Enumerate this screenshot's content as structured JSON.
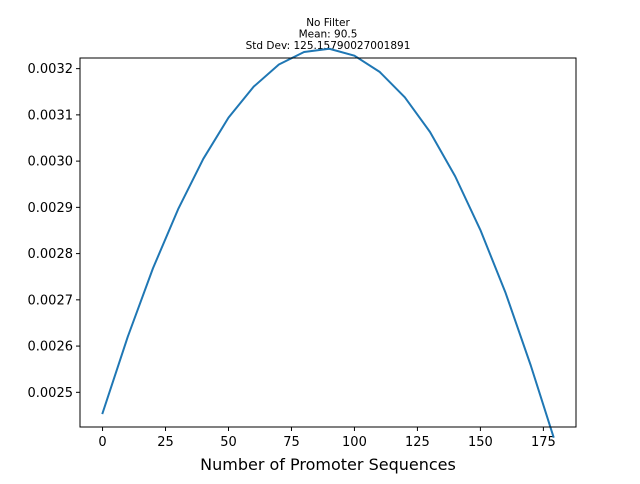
{
  "chart_data": {
    "type": "line",
    "title": [
      "No Filter",
      "Mean: 90.5",
      "Std Dev: 125.15790027001891"
    ],
    "xlabel": "Number of Promoter Sequences",
    "ylabel": "",
    "xlim": [
      -8.95,
      187.95
    ],
    "ylim": [
      0.002425,
      0.003223
    ],
    "x_ticks": [
      0,
      25,
      50,
      75,
      100,
      125,
      150,
      175
    ],
    "x_tick_labels": [
      "0",
      "25",
      "50",
      "75",
      "100",
      "125",
      "150",
      "175"
    ],
    "y_ticks": [
      0.0025,
      0.0026,
      0.0027,
      0.0028,
      0.0029,
      0.003,
      0.0031,
      0.0032
    ],
    "y_tick_labels": [
      "0.0025",
      "0.0026",
      "0.0027",
      "0.0028",
      "0.0029",
      "0.0030",
      "0.0031",
      "0.0032"
    ],
    "grid": false,
    "legend": "none",
    "series": [
      {
        "color": "#1f77b4",
        "x": [
          0,
          10,
          20,
          30,
          40,
          50,
          60,
          70,
          80,
          90,
          100,
          110,
          120,
          130,
          140,
          150,
          160,
          170,
          179
        ],
        "y": [
          0.002455,
          0.00262,
          0.002768,
          0.002896,
          0.003005,
          0.003094,
          0.003161,
          0.003209,
          0.003236,
          0.003243,
          0.003228,
          0.003193,
          0.003138,
          0.003063,
          0.002967,
          0.002851,
          0.002715,
          0.002558,
          0.002404
        ]
      }
    ]
  }
}
